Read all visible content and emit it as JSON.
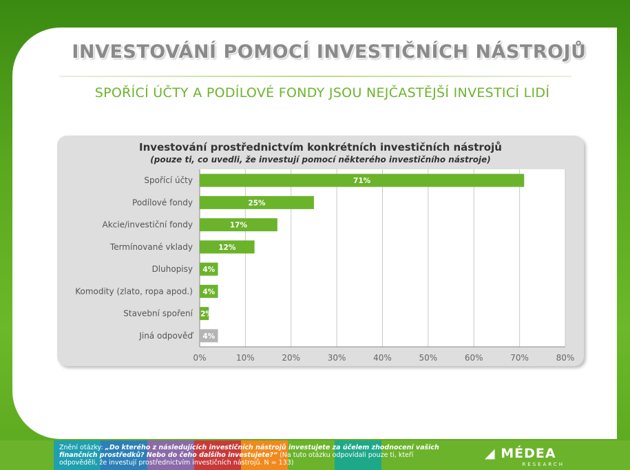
{
  "slide": {
    "title": "INVESTOVÁNÍ POMOCÍ INVESTIČNÍCH NÁSTROJŮ",
    "subtitle": "SPOŘÍCÍ ÚČTY A PODÍLOVÉ FONDY JSOU NEJČASTĚJŠÍ INVESTICÍ LIDÍ"
  },
  "chart_data": {
    "type": "bar",
    "orientation": "horizontal",
    "title": "Investování prostřednictvím konkrétních investičních nástrojů",
    "subtitle": "(pouze ti, co uvedli, že investují pomocí některého investičního nástroje)",
    "categories": [
      "Spořící účty",
      "Podílové fondy",
      "Akcie/investiční fondy",
      "Termínované vklady",
      "Dluhopisy",
      "Komodity (zlato, ropa apod.)",
      "Stavební spoření",
      "Jiná odpověď"
    ],
    "values": [
      71,
      25,
      17,
      12,
      4,
      4,
      2,
      4
    ],
    "data_labels": [
      "71%",
      "25%",
      "17%",
      "12%",
      "4%",
      "4%",
      "2%",
      "4%"
    ],
    "bar_colors": [
      "#6cb32c",
      "#6cb32c",
      "#6cb32c",
      "#6cb32c",
      "#6cb32c",
      "#6cb32c",
      "#6cb32c",
      "#b4b4b4"
    ],
    "xlim": [
      0,
      80
    ],
    "xticks": [
      "0%",
      "10%",
      "20%",
      "30%",
      "40%",
      "50%",
      "60%",
      "70%",
      "80%"
    ],
    "grid": true,
    "legend": "none"
  },
  "footer": {
    "note_prefix": "Znění otázky: ",
    "note_question": "„Do kterého z následujících investičních nástrojů investujete za účelem zhodnocení vašich finančních prostředků? Nebo do čeho dalšího investujete?“",
    "note_suffix": " (Na tuto otázku odpovídali pouze ti, kteří odpověděli, že investují prostřednictvím investičních nástrojů. N = 133)",
    "logo_text": "MÉDEA",
    "logo_sub": "RESEARCH",
    "stripe_colors": [
      "#1f9fb0",
      "#2c7fb8",
      "#8a6aa8",
      "#c83a3a",
      "#f08a1e",
      "#6cb32c",
      "#1ea88a"
    ]
  }
}
